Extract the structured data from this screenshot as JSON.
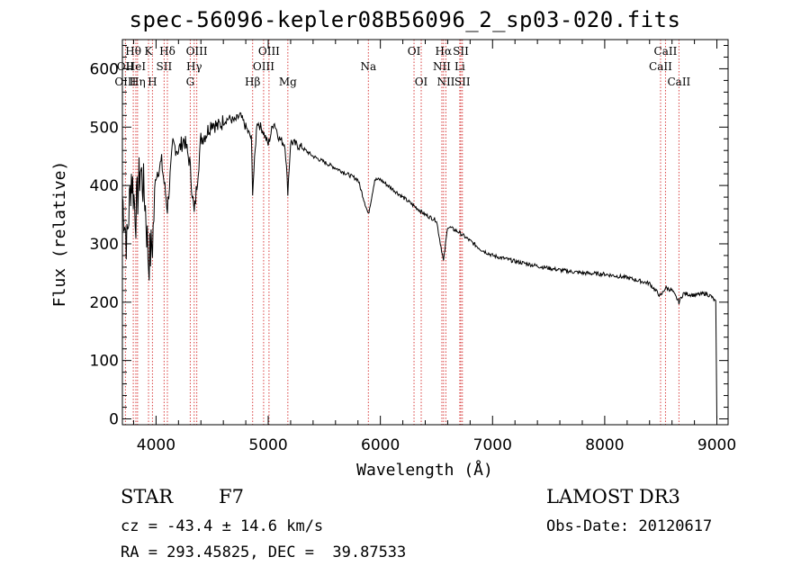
{
  "chart_data": {
    "type": "line",
    "title": "spec-56096-kepler08B56096_2_sp03-020.fits",
    "xlabel": "Wavelength (Å)",
    "ylabel": "Flux (relative)",
    "xlim": [
      3700,
      9100
    ],
    "ylim": [
      -10,
      650
    ],
    "xticks": [
      4000,
      5000,
      6000,
      7000,
      8000,
      9000
    ],
    "yticks": [
      0,
      100,
      200,
      300,
      400,
      500,
      600
    ],
    "grid": false,
    "series": [
      {
        "name": "spectrum",
        "x": [
          3700,
          3740,
          3780,
          3820,
          3860,
          3900,
          3933,
          3968,
          4000,
          4050,
          4101,
          4150,
          4200,
          4250,
          4300,
          4340,
          4400,
          4450,
          4500,
          4550,
          4600,
          4650,
          4700,
          4750,
          4800,
          4850,
          4861,
          4900,
          4950,
          5000,
          5050,
          5100,
          5150,
          5175,
          5200,
          5300,
          5400,
          5500,
          5600,
          5700,
          5800,
          5893,
          5950,
          6000,
          6100,
          6200,
          6300,
          6400,
          6500,
          6563,
          6600,
          6700,
          6800,
          6900,
          7000,
          7200,
          7400,
          7600,
          7800,
          8000,
          8200,
          8400,
          8498,
          8542,
          8600,
          8662,
          8700,
          8800,
          8900,
          8950,
          8990,
          9000
        ],
        "y": [
          380,
          300,
          420,
          350,
          430,
          380,
          270,
          300,
          420,
          440,
          360,
          470,
          460,
          480,
          440,
          350,
          480,
          490,
          510,
          500,
          510,
          515,
          510,
          520,
          500,
          480,
          390,
          510,
          495,
          470,
          510,
          480,
          470,
          390,
          475,
          465,
          450,
          440,
          430,
          420,
          410,
          350,
          410,
          410,
          395,
          380,
          365,
          350,
          340,
          270,
          330,
          320,
          305,
          290,
          280,
          270,
          262,
          255,
          250,
          248,
          242,
          232,
          210,
          225,
          220,
          200,
          215,
          212,
          215,
          210,
          200,
          0
        ]
      }
    ],
    "spectral_lines": [
      {
        "name": "Hθ",
        "x": 3797,
        "row": 1
      },
      {
        "name": "OII",
        "x": 3727,
        "row": 2
      },
      {
        "name": "OIII",
        "x": 3727,
        "row": 3
      },
      {
        "name": "HeI",
        "x": 3820,
        "row": 2
      },
      {
        "name": "Hη",
        "x": 3835,
        "row": 3
      },
      {
        "name": "K",
        "x": 3933,
        "row": 1
      },
      {
        "name": "H",
        "x": 3968,
        "row": 3
      },
      {
        "name": "Hδ",
        "x": 4101,
        "row": 1
      },
      {
        "name": "SII",
        "x": 4072,
        "row": 2
      },
      {
        "name": "OIII",
        "x": 4363,
        "row": 1
      },
      {
        "name": "Hγ",
        "x": 4340,
        "row": 2
      },
      {
        "name": "G",
        "x": 4305,
        "row": 3
      },
      {
        "name": "Hβ",
        "x": 4861,
        "row": 3
      },
      {
        "name": "OIII",
        "x": 5007,
        "row": 1
      },
      {
        "name": "OIII",
        "x": 4959,
        "row": 2
      },
      {
        "name": "Mg",
        "x": 5175,
        "row": 3
      },
      {
        "name": "Na",
        "x": 5893,
        "row": 2
      },
      {
        "name": "OI",
        "x": 6300,
        "row": 1
      },
      {
        "name": "OI",
        "x": 6364,
        "row": 3
      },
      {
        "name": "Hα",
        "x": 6563,
        "row": 1
      },
      {
        "name": "NII",
        "x": 6548,
        "row": 2
      },
      {
        "name": "NII",
        "x": 6584,
        "row": 3
      },
      {
        "name": "SII",
        "x": 6717,
        "row": 1
      },
      {
        "name": "Li",
        "x": 6708,
        "row": 2
      },
      {
        "name": "SII",
        "x": 6731,
        "row": 3
      },
      {
        "name": "CaII",
        "x": 8542,
        "row": 1
      },
      {
        "name": "CaII",
        "x": 8498,
        "row": 2
      },
      {
        "name": "CaII",
        "x": 8662,
        "row": 3
      }
    ]
  },
  "info": {
    "object_class": "STAR",
    "subclass": "F7",
    "survey": "LAMOST DR3",
    "redshift": "cz = -43.4 ± 14.6 km/s",
    "obs_date": "Obs-Date: 20120617",
    "coords": "RA = 293.45825, DEC =  39.87533"
  }
}
